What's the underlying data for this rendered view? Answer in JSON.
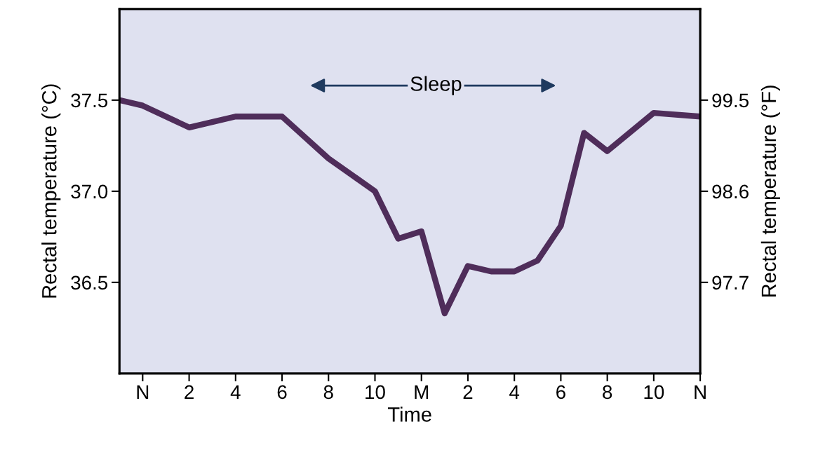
{
  "chart_data": {
    "type": "line",
    "xlabel": "Time",
    "ylabel": "Rectal temperature (°C)",
    "y2label": "Rectal temperature (°F)",
    "categories": [
      null,
      "N",
      null,
      "2",
      null,
      "4",
      null,
      "6",
      null,
      "8",
      null,
      "10",
      null,
      "M",
      null,
      "2",
      null,
      "4",
      null,
      "6",
      null,
      "8",
      null,
      "10",
      null,
      "N"
    ],
    "series": [
      {
        "color": "#4f2d5a",
        "values": [
          37.5,
          37.47,
          null,
          37.35,
          null,
          37.41,
          null,
          37.41,
          null,
          37.18,
          null,
          37.0,
          36.74,
          36.78,
          36.33,
          36.59,
          36.56,
          36.56,
          36.62,
          36.81,
          37.32,
          37.22,
          null,
          37.43,
          null,
          37.41
        ]
      }
    ],
    "ylim": [
      36.0,
      38.0
    ],
    "yticks": [
      {
        "value": 36.5,
        "label": "36.5"
      },
      {
        "value": 37.0,
        "label": "37.0"
      },
      {
        "value": 37.5,
        "label": "37.5"
      }
    ],
    "y2lim": [
      96.8,
      100.4
    ],
    "y2ticks": [
      97.7,
      98.6,
      99.5
    ],
    "annotations": [
      "Sleep"
    ],
    "grid": false,
    "marker": "none",
    "line_style": "solid"
  }
}
